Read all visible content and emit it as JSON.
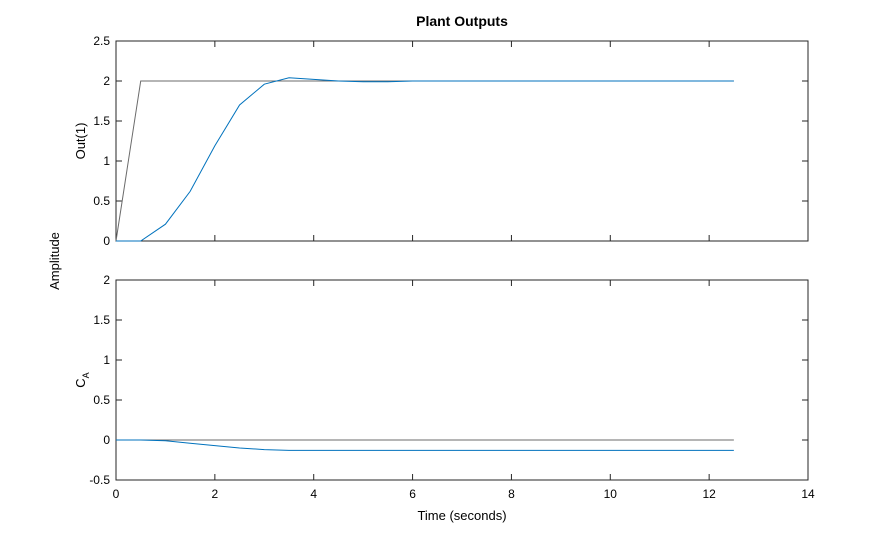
{
  "figure": {
    "title": "Plant Outputs",
    "ylabel": "Amplitude",
    "xlabel": "Time (seconds)"
  },
  "chart_data": [
    {
      "type": "line",
      "title": "Plant Outputs",
      "xlabel": "",
      "ylabel": "Out(1)",
      "xlim": [
        0,
        14
      ],
      "ylim": [
        0,
        2.5
      ],
      "xticks": [
        0,
        2,
        4,
        6,
        8,
        10,
        12,
        14
      ],
      "xtick_labels_visible": false,
      "yticks": [
        0,
        0.5,
        1,
        1.5,
        2,
        2.5
      ],
      "ytick_labels": [
        "0",
        "0.5",
        "1",
        "1.5",
        "2",
        "2.5"
      ],
      "grid": false,
      "series": [
        {
          "color": "#6b6b6b",
          "x": [
            0,
            0.5,
            1,
            2,
            4,
            6,
            8,
            10,
            12.5
          ],
          "y": [
            0,
            2,
            2,
            2,
            2,
            2,
            2,
            2,
            2
          ]
        },
        {
          "color": "#0072bd",
          "x": [
            0,
            0.5,
            1,
            1.5,
            2,
            2.5,
            3,
            3.5,
            4,
            4.5,
            5,
            5.5,
            6,
            7,
            8,
            9,
            10,
            11,
            12,
            12.5
          ],
          "y": [
            0,
            0,
            0.21,
            0.62,
            1.19,
            1.7,
            1.96,
            2.04,
            2.02,
            2.0,
            1.99,
            1.99,
            2.0,
            2.0,
            2.0,
            2.0,
            2.0,
            2.0,
            2.0,
            2.0
          ]
        }
      ]
    },
    {
      "type": "line",
      "title": "",
      "xlabel": "Time (seconds)",
      "ylabel": "C",
      "ylabel_subscript": "A",
      "xlim": [
        0,
        14
      ],
      "ylim": [
        -0.5,
        2
      ],
      "xticks": [
        0,
        2,
        4,
        6,
        8,
        10,
        12,
        14
      ],
      "xtick_labels": [
        "0",
        "2",
        "4",
        "6",
        "8",
        "10",
        "12",
        "14"
      ],
      "yticks": [
        -0.5,
        0,
        0.5,
        1,
        1.5,
        2
      ],
      "ytick_labels": [
        "-0.5",
        "0",
        "0.5",
        "1",
        "1.5",
        "2"
      ],
      "grid": false,
      "series": [
        {
          "color": "#6b6b6b",
          "x": [
            0,
            12.5
          ],
          "y": [
            0,
            0
          ]
        },
        {
          "color": "#0072bd",
          "x": [
            0,
            0.5,
            1,
            1.5,
            2,
            2.5,
            3,
            3.5,
            4,
            5,
            6,
            8,
            10,
            12.5
          ],
          "y": [
            0,
            0,
            -0.01,
            -0.04,
            -0.07,
            -0.1,
            -0.12,
            -0.13,
            -0.13,
            -0.13,
            -0.13,
            -0.13,
            -0.13,
            -0.13
          ]
        }
      ]
    }
  ]
}
